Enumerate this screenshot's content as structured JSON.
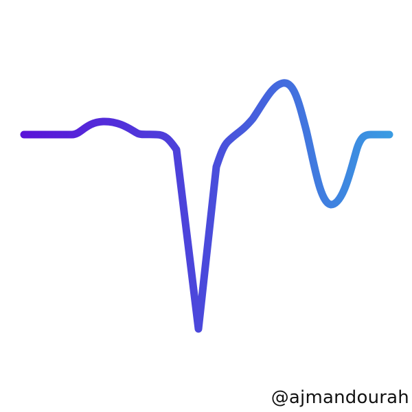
{
  "credit": {
    "handle": "@ajmandourah"
  },
  "waveform": {
    "icon": "ecg-waveform-icon",
    "colors": {
      "gradient_start": "#5a14d8",
      "gradient_mid": "#4a4adb",
      "gradient_end": "#3a9be2"
    }
  }
}
